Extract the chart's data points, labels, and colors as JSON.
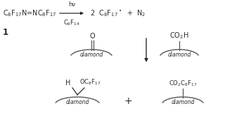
{
  "bg_color": "#ffffff",
  "text_color": "#2a2a2a",
  "line_color": "#2a2a2a",
  "figsize": [
    3.47,
    1.82
  ],
  "dpi": 100,
  "top_reaction": {
    "reactant": "C$_8$F$_{17}$N=NC$_8$F$_{17}$",
    "label": "1",
    "arrow_above": "hν",
    "arrow_below": "C$_6$F$_{14}$",
    "product": "2  C$_8$F$_{17}$$^\\bullet$  +  N$_2$"
  },
  "fs_main": 7.0,
  "fs_small": 6.0,
  "fs_diamond": 5.5
}
